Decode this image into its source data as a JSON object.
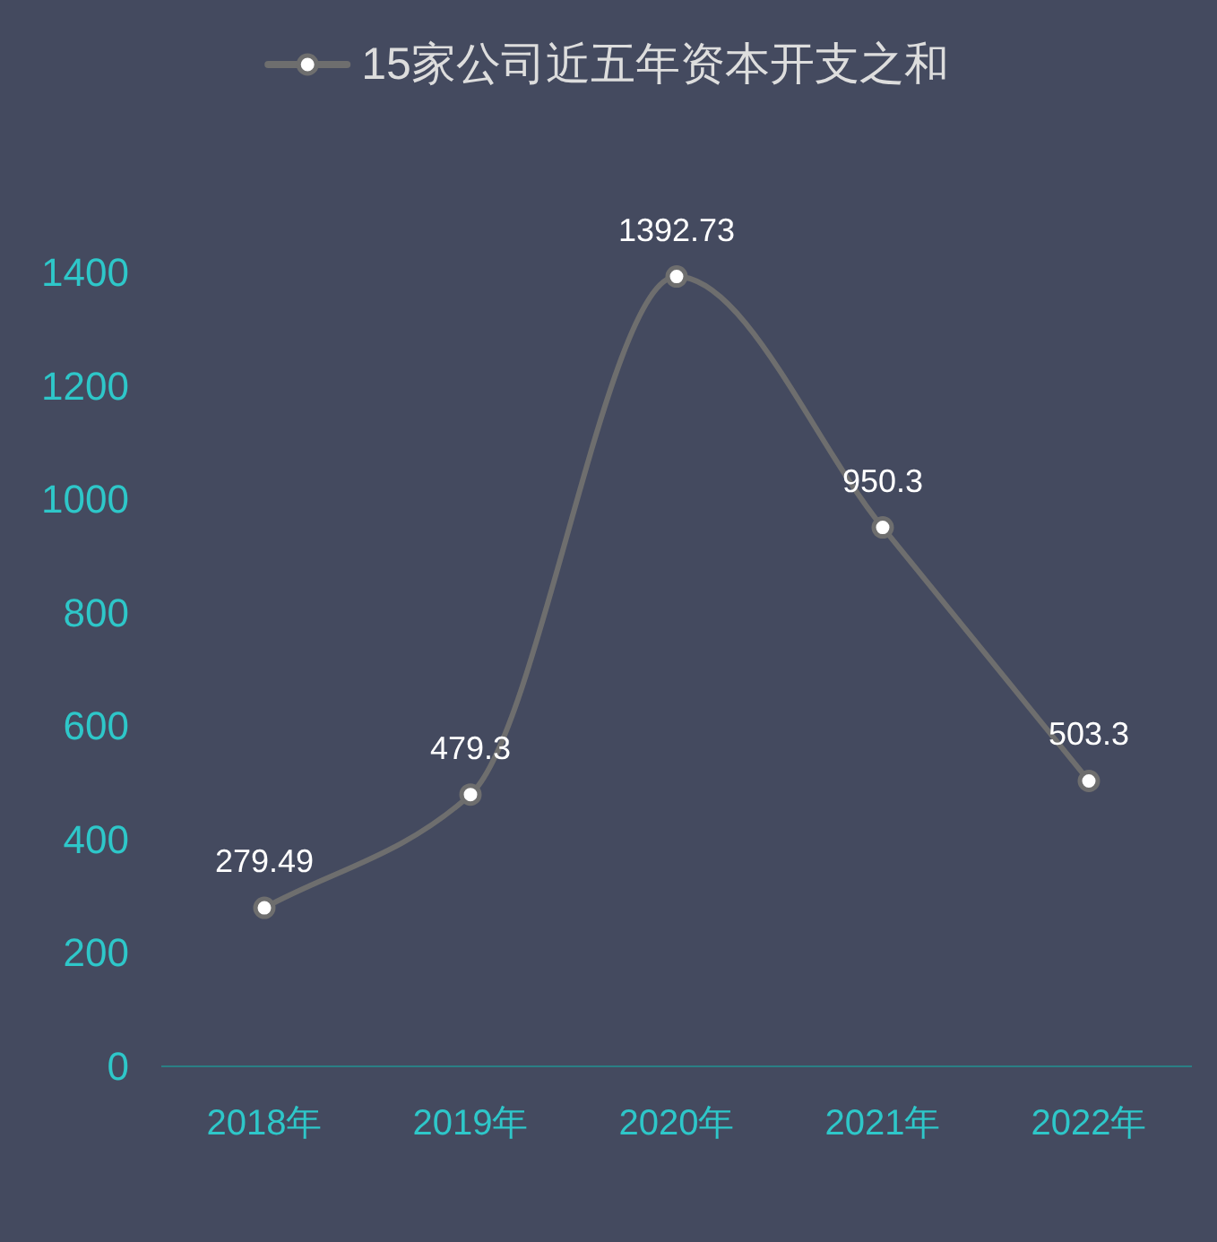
{
  "chart_data": {
    "type": "line",
    "categories": [
      "2018年",
      "2019年",
      "2020年",
      "2021年",
      "2022年"
    ],
    "series": [
      {
        "name": "15家公司近五年资本开支之和",
        "color": "#6e6e6e",
        "values": [
          279.49,
          479.3,
          1392.73,
          950.3,
          503.3
        ]
      }
    ],
    "ylim": [
      0,
      1400
    ],
    "yticks": [
      0,
      200,
      400,
      600,
      800,
      1000,
      1200,
      1400
    ],
    "legend": "top",
    "marker": "circle",
    "data_labels": true,
    "grid": false
  }
}
